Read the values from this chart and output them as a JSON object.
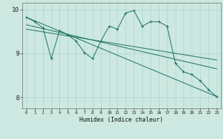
{
  "title": "",
  "xlabel": "Humidex (Indice chaleur)",
  "ylabel": "",
  "bg_color": "#cce8e0",
  "grid_color": "#b0d8d0",
  "line_color": "#2a7a6e",
  "xlim": [
    -0.5,
    23.5
  ],
  "ylim": [
    7.75,
    10.15
  ],
  "yticks": [
    8,
    9,
    10
  ],
  "xticks": [
    0,
    1,
    2,
    3,
    4,
    5,
    6,
    7,
    8,
    9,
    10,
    11,
    12,
    13,
    14,
    15,
    16,
    17,
    18,
    19,
    20,
    21,
    22,
    23
  ],
  "series1_x": [
    0,
    1,
    2,
    3,
    4,
    5,
    6,
    7,
    8,
    9,
    10,
    11,
    12,
    13,
    14,
    15,
    16,
    17,
    18,
    19,
    20,
    21,
    22,
    23
  ],
  "series1_y": [
    9.82,
    9.72,
    9.58,
    8.88,
    9.52,
    9.42,
    9.28,
    9.02,
    8.88,
    9.28,
    9.62,
    9.55,
    9.92,
    9.97,
    9.62,
    9.72,
    9.72,
    9.62,
    8.78,
    8.58,
    8.52,
    8.38,
    8.18,
    8.02
  ],
  "series2_x": [
    0,
    23
  ],
  "series2_y": [
    9.82,
    8.02
  ],
  "series3_x": [
    0,
    23
  ],
  "series3_y": [
    9.65,
    8.65
  ],
  "series4_x": [
    0,
    23
  ],
  "series4_y": [
    9.55,
    8.85
  ]
}
